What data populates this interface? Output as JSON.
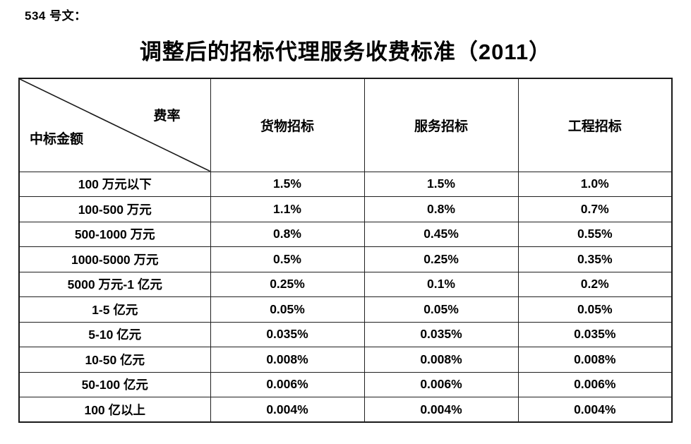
{
  "page": {
    "doc_ref": "534 号文：",
    "title": "调整后的招标代理服务收费标准（2011）"
  },
  "table": {
    "corner": {
      "top_right_label": "费率",
      "bottom_left_label": "中标金额"
    },
    "columns": [
      "货物招标",
      "服务招标",
      "工程招标"
    ],
    "rows": [
      {
        "amount": "100 万元以下",
        "values": [
          "1.5%",
          "1.5%",
          "1.0%"
        ]
      },
      {
        "amount": "100-500 万元",
        "values": [
          "1.1%",
          "0.8%",
          "0.7%"
        ]
      },
      {
        "amount": "500-1000 万元",
        "values": [
          "0.8%",
          "0.45%",
          "0.55%"
        ]
      },
      {
        "amount": "1000-5000 万元",
        "values": [
          "0.5%",
          "0.25%",
          "0.35%"
        ]
      },
      {
        "amount": "5000 万元-1 亿元",
        "values": [
          "0.25%",
          "0.1%",
          "0.2%"
        ]
      },
      {
        "amount": "1-5 亿元",
        "values": [
          "0.05%",
          "0.05%",
          "0.05%"
        ]
      },
      {
        "amount": "5-10 亿元",
        "values": [
          "0.035%",
          "0.035%",
          "0.035%"
        ]
      },
      {
        "amount": "10-50 亿元",
        "values": [
          "0.008%",
          "0.008%",
          "0.008%"
        ]
      },
      {
        "amount": "50-100 亿元",
        "values": [
          "0.006%",
          "0.006%",
          "0.006%"
        ]
      },
      {
        "amount": "100 亿以上",
        "values": [
          "0.004%",
          "0.004%",
          "0.004%"
        ]
      }
    ],
    "colors": {
      "border": "#1a1a1a",
      "text": "#000000",
      "background": "#ffffff"
    }
  }
}
